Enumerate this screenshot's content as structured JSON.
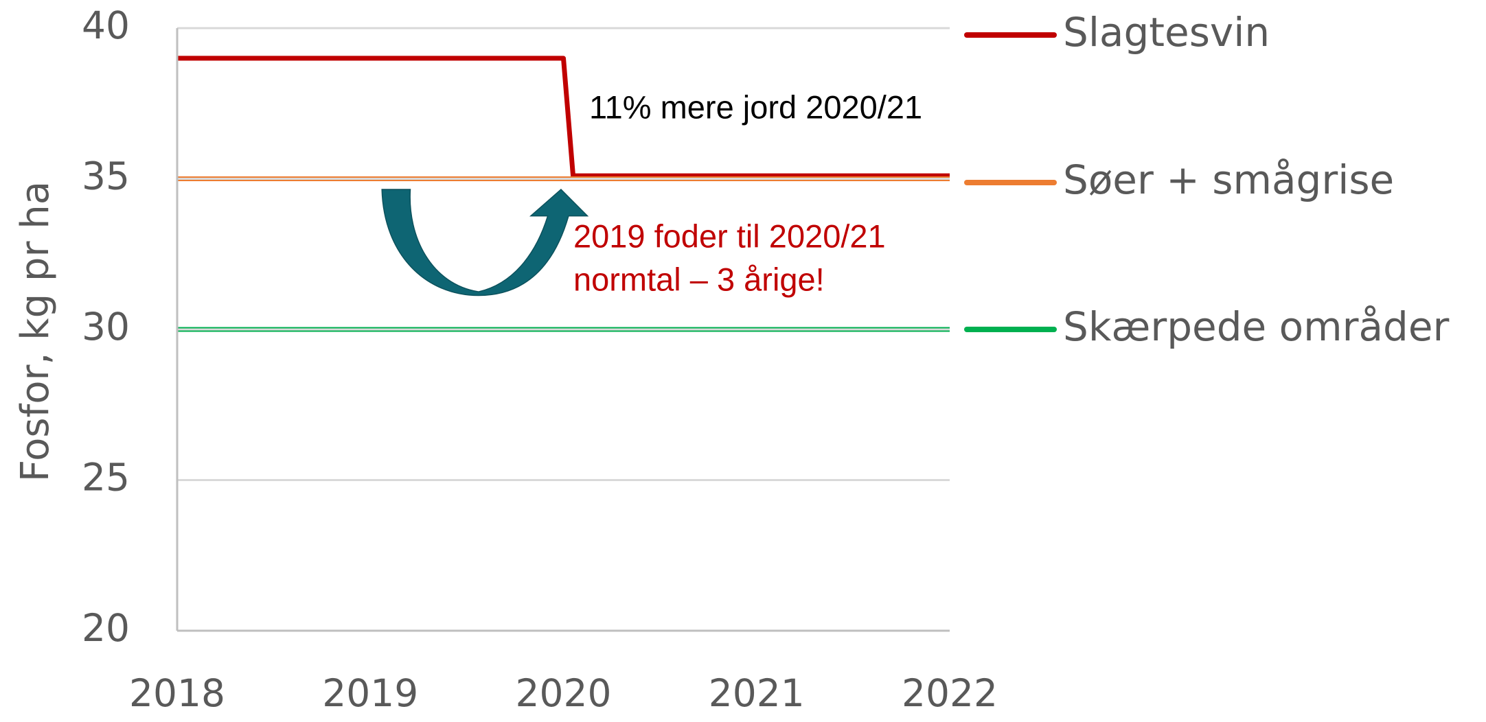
{
  "chart_data": {
    "type": "line",
    "y_label": "Fosfor, kg pr ha",
    "series": [
      {
        "name": "Slagtesvin",
        "color": "#c00000",
        "x": [
          2018,
          2020,
          2020.05,
          2022
        ],
        "values": [
          39,
          39,
          35.1,
          35.1
        ]
      },
      {
        "name": "Søer + smågrise",
        "color": "#ed7d31",
        "x": [
          2018,
          2022
        ],
        "values": [
          35,
          35
        ]
      },
      {
        "name": "Skærpede områder",
        "color": "#00b050",
        "x": [
          2018,
          2022
        ],
        "values": [
          30,
          30
        ]
      }
    ],
    "xlim": [
      2018,
      2022
    ],
    "xticks": [
      2018,
      2019,
      2020,
      2021,
      2022
    ],
    "ylim": [
      20,
      40
    ],
    "yticks": [
      20,
      25,
      30,
      35,
      40
    ],
    "grid": true,
    "legend": "right",
    "annotations": [
      "11% mere jord 2020/21",
      "2019 foder til 2020/21",
      "normtal – 3 årige!"
    ]
  }
}
